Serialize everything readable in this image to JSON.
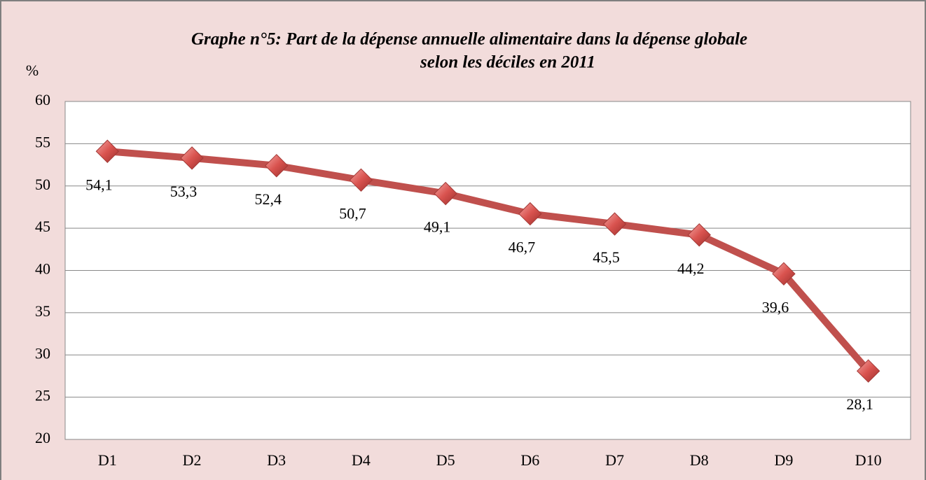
{
  "chart_data": {
    "type": "line",
    "title": [
      "Graphe n°5: Part de la dépense annuelle alimentaire dans la dépense globale",
      "selon les déciles en 2011"
    ],
    "y_label": "%",
    "categories": [
      "D1",
      "D2",
      "D3",
      "D4",
      "D5",
      "D6",
      "D7",
      "D8",
      "D9",
      "D10"
    ],
    "series": [
      {
        "color": "#c0504d",
        "values": [
          54.1,
          53.3,
          52.4,
          50.7,
          49.1,
          46.7,
          45.5,
          44.2,
          39.6,
          28.1
        ],
        "value_labels": [
          "54,1",
          "53,3",
          "52,4",
          "50,7",
          "49,1",
          "46,7",
          "45,5",
          "44,2",
          "39,6",
          "28,1"
        ]
      }
    ],
    "ylim": [
      20,
      60
    ],
    "yticks": [
      20,
      25,
      30,
      35,
      40,
      45,
      50,
      55,
      60
    ],
    "grid": true
  }
}
